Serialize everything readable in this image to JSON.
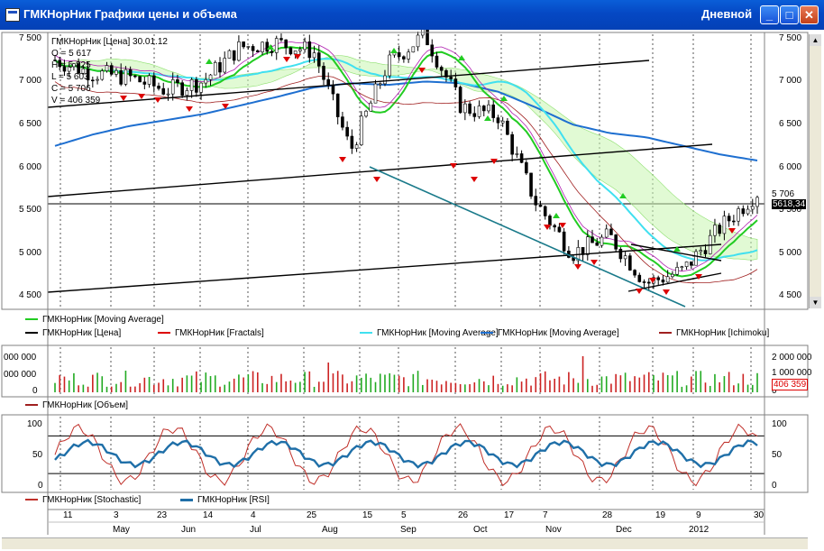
{
  "window": {
    "title": "ГМКНорНик Графики цены и объема",
    "mode": "Дневной",
    "icon": "chart-window-icon",
    "buttons": [
      "minimize-icon",
      "maximize-icon",
      "close-icon"
    ]
  },
  "info": {
    "header": "ГМКНорНик [Цена] 30.01.12",
    "open": "O = 5 617",
    "high": "H = 5 825",
    "low": "L = 5 603",
    "close": "C = 5 706",
    "volume": "V = 406 359"
  },
  "price_axis": {
    "ticks": [
      "7 500",
      "7 000",
      "6 500",
      "6 000",
      "5 500",
      "5 000",
      "4 500"
    ],
    "current": "5 706",
    "crosshair": "5618,34"
  },
  "legend_main": [
    "ГМКНорНик [Moving Average]",
    "ГМКНорНик [Цена]",
    "ГМКНорНик [Fractals]",
    "ГМКНорНик [Moving Average]",
    "ГМКНорНик [Moving Average]",
    "ГМКНорНик [Ichimoku]"
  ],
  "legend_colors": [
    "#22cc22",
    "#000000",
    "#dd0000",
    "#40e0f0",
    "#1e6fd0",
    "#a02020"
  ],
  "volume_axis": {
    "left": [
      "000 000",
      "000 000",
      "0"
    ],
    "right": [
      "2 000 000",
      "1 000 000",
      "0"
    ],
    "current": "406 359"
  },
  "legend_volume": "ГМКНорНик [Объем]",
  "osc_axis": {
    "ticks": [
      "100",
      "50",
      "0"
    ]
  },
  "legend_osc": [
    "ГМКНорНик [Stochastic]",
    "ГМКНорНик [RSI]"
  ],
  "days": [
    "11",
    "3",
    "23",
    "14",
    "4",
    "25",
    "15",
    "5",
    "26",
    "17",
    "7",
    "28",
    "19",
    "9",
    "30"
  ],
  "months": [
    "May",
    "Jun",
    "Jul",
    "Aug",
    "Sep",
    "Oct",
    "Nov",
    "Dec",
    "2012"
  ],
  "chart_data": {
    "type": "line",
    "x": [
      "2011-04-18",
      "2011-05-01",
      "2011-05-15",
      "2011-06-01",
      "2011-06-15",
      "2011-07-01",
      "2011-07-15",
      "2011-08-01",
      "2011-08-15",
      "2011-09-01",
      "2011-09-15",
      "2011-10-01",
      "2011-10-15",
      "2011-11-01",
      "2011-11-15",
      "2011-12-01",
      "2011-12-15",
      "2012-01-01",
      "2012-01-15",
      "2012-01-30"
    ],
    "series": [
      {
        "name": "ГМКНорНик [Цена]",
        "values": [
          7250,
          7100,
          7050,
          6900,
          7000,
          7400,
          7450,
          7350,
          6200,
          7200,
          7550,
          6700,
          6600,
          5600,
          5000,
          5200,
          4650,
          4800,
          5300,
          5706
        ]
      },
      {
        "name": "ГМКНорНик [Moving Average]",
        "values": [
          6250,
          6380,
          6480,
          6550,
          6620,
          6720,
          6820,
          6930,
          6980,
          6960,
          7000,
          6980,
          6880,
          6700,
          6500,
          6400,
          6350,
          6250,
          6150,
          6080
        ]
      }
    ],
    "ylim": [
      4400,
      7550
    ]
  }
}
